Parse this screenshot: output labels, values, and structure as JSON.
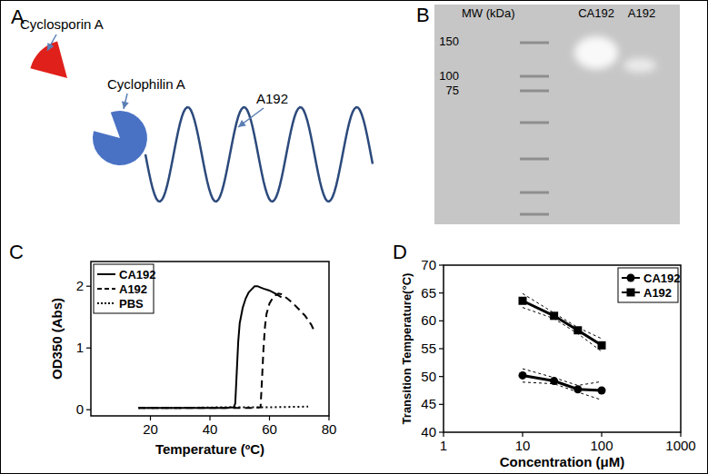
{
  "panel_labels": [
    "A",
    "B",
    "C",
    "D"
  ],
  "diagram": {
    "labels": [
      "Cyclosporin A",
      "Cyclophilin A",
      "A192"
    ]
  },
  "gel": {
    "marker_title": "MW (kDa)",
    "markers": [
      150,
      100,
      75
    ],
    "lanes": [
      "CA192",
      "A192"
    ]
  },
  "chart_data": [
    {
      "type": "line",
      "xlabel": "Temperature (ºC)",
      "ylabel": "OD350 (Abs)",
      "xlim": [
        0,
        80
      ],
      "ylim": [
        -0.1,
        2.4
      ],
      "xticks": [
        20,
        40,
        60,
        80
      ],
      "yticks": [
        0,
        1,
        2
      ],
      "grid": false,
      "legend": "upper-left",
      "series": [
        {
          "name": "CA192",
          "color": "#000000",
          "line_style": "solid",
          "x": [
            16,
            20,
            30,
            40,
            45,
            48,
            48.5,
            49,
            49.5,
            50,
            51,
            52,
            53,
            54,
            55,
            56,
            57,
            58,
            60,
            62,
            64
          ],
          "values": [
            0.03,
            0.03,
            0.03,
            0.03,
            0.03,
            0.04,
            0.1,
            0.6,
            1.1,
            1.4,
            1.65,
            1.8,
            1.9,
            1.95,
            2.0,
            2.0,
            1.98,
            1.96,
            1.93,
            1.88,
            1.82
          ]
        },
        {
          "name": "A192",
          "color": "#000000",
          "line_style": "dashed",
          "x": [
            16,
            20,
            30,
            40,
            50,
            55,
            57,
            57.5,
            58,
            58.5,
            59,
            60,
            61,
            62,
            63,
            64,
            66,
            68,
            70,
            72,
            74,
            75
          ],
          "values": [
            0.03,
            0.03,
            0.03,
            0.03,
            0.03,
            0.03,
            0.04,
            0.5,
            1.0,
            1.35,
            1.55,
            1.72,
            1.8,
            1.85,
            1.88,
            1.87,
            1.8,
            1.72,
            1.62,
            1.52,
            1.38,
            1.28
          ]
        },
        {
          "name": "PBS",
          "color": "#000000",
          "line_style": "dotted",
          "x": [
            16,
            30,
            45,
            60,
            73
          ],
          "values": [
            0.03,
            0.03,
            0.04,
            0.04,
            0.05
          ]
        }
      ]
    },
    {
      "type": "line",
      "log": "x",
      "xlabel": "Concentration (μM)",
      "ylabel": "Transition Temperature(°C)",
      "xlim": [
        1,
        1000
      ],
      "ylim": [
        40,
        70
      ],
      "xticks": [
        1,
        10,
        100,
        1000
      ],
      "yticks": [
        40,
        45,
        50,
        55,
        60,
        65,
        70
      ],
      "grid": false,
      "legend": "upper-right",
      "series": [
        {
          "name": "CA192",
          "color": "#000000",
          "marker": "circle",
          "line_style": "solid",
          "x": [
            10,
            25,
            50,
            100
          ],
          "values": [
            50.2,
            49.2,
            47.7,
            47.5
          ],
          "ci_lower": [
            49.0,
            48.7,
            47.2,
            45.8
          ],
          "ci_upper": [
            51.4,
            49.8,
            48.4,
            49.1
          ]
        },
        {
          "name": "A192",
          "color": "#000000",
          "marker": "square",
          "line_style": "solid",
          "x": [
            10,
            25,
            50,
            100
          ],
          "values": [
            63.6,
            60.9,
            58.3,
            55.6
          ],
          "ci_lower": [
            62.4,
            60.4,
            57.7,
            54.5
          ],
          "ci_upper": [
            64.9,
            61.4,
            58.8,
            56.8
          ]
        }
      ]
    }
  ]
}
